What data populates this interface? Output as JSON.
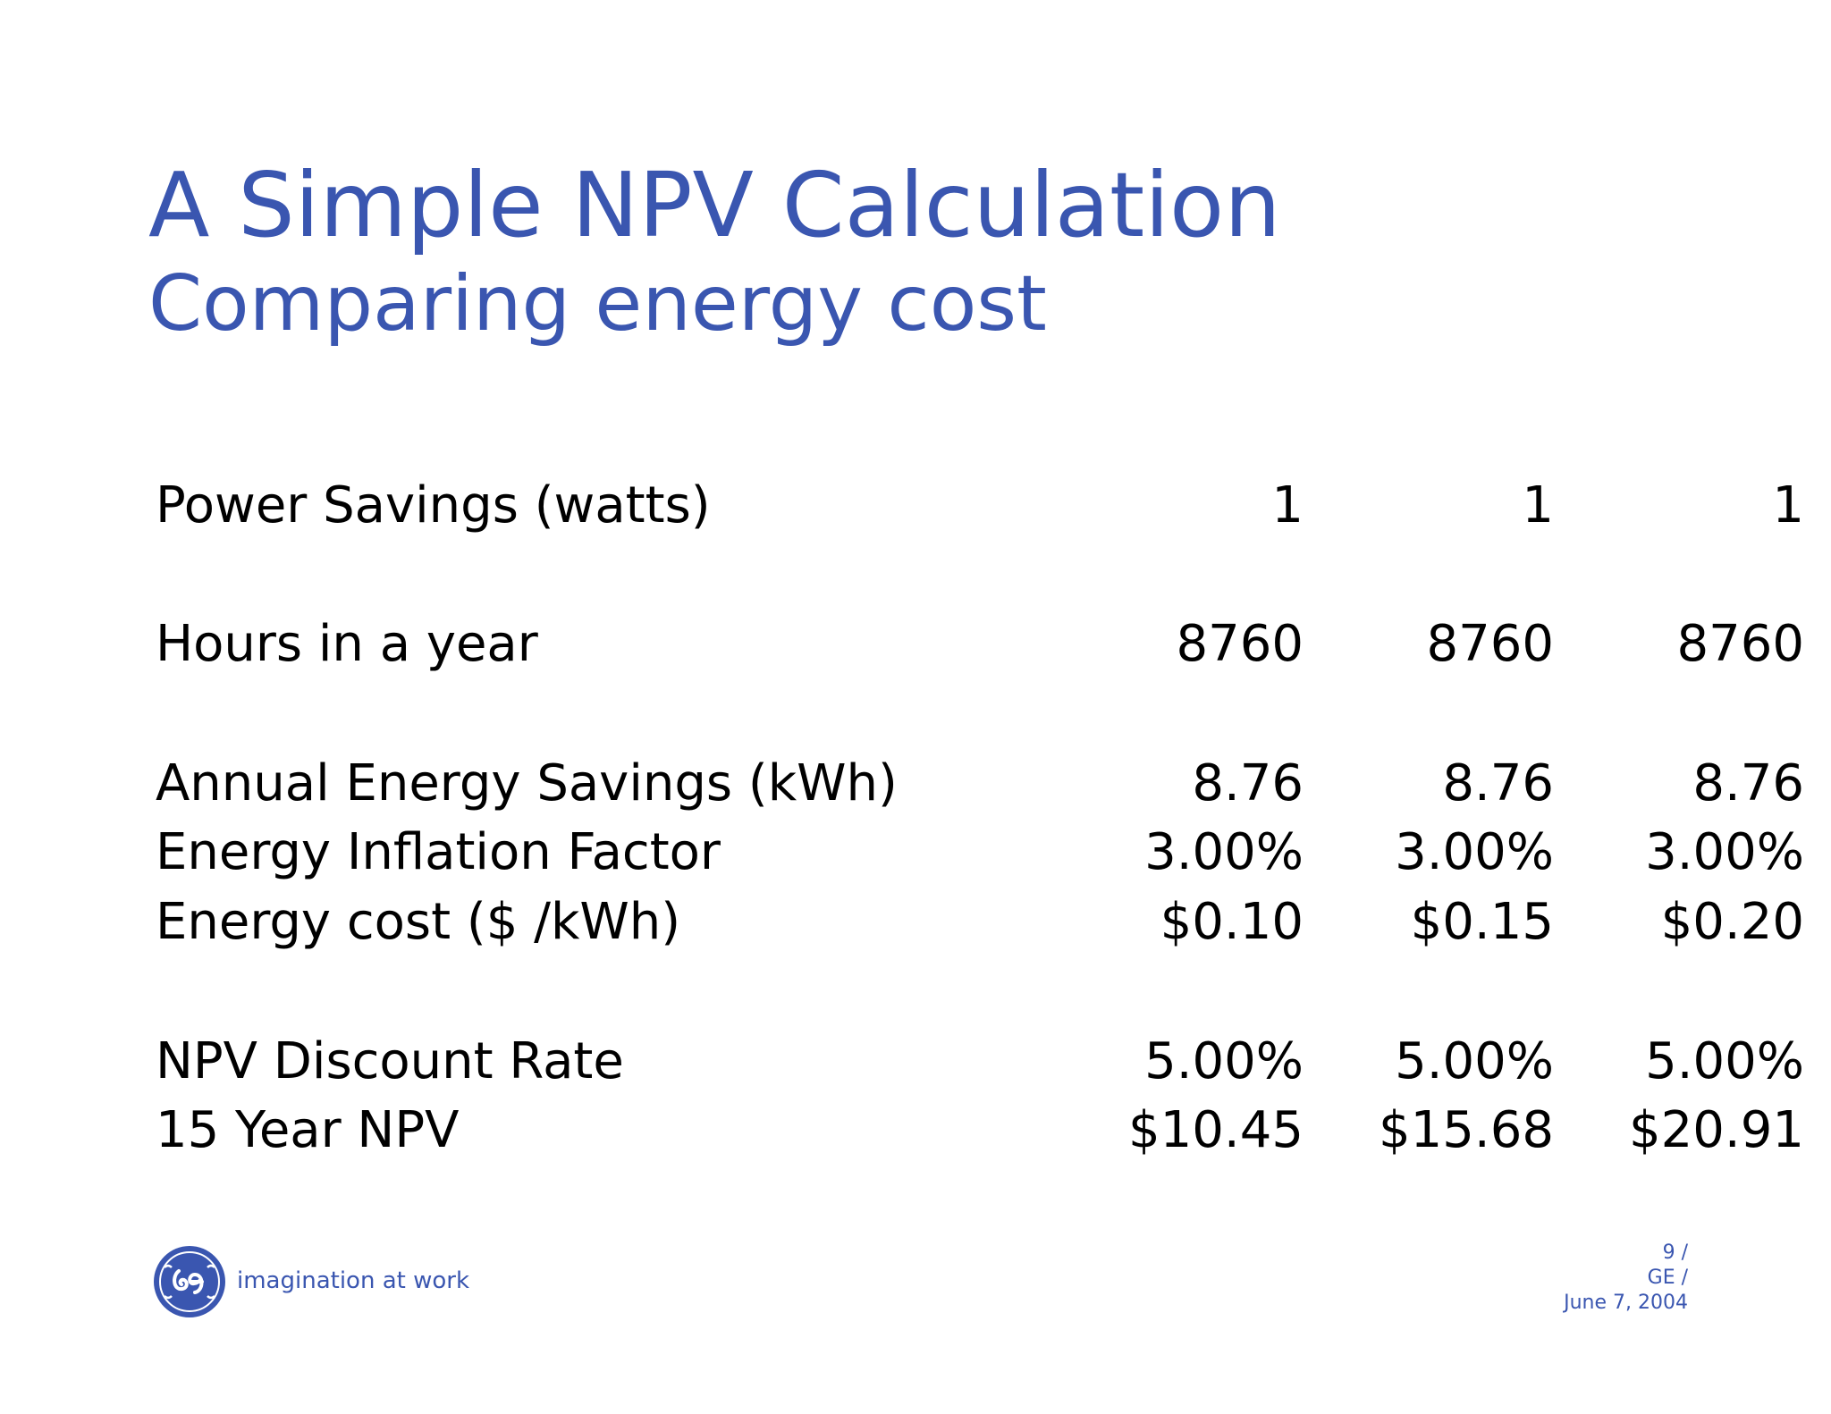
{
  "slide": {
    "title": "A Simple NPV Calculation",
    "subtitle": "Comparing energy cost"
  },
  "table": {
    "rows": [
      {
        "label": "Power Savings (watts)",
        "values": [
          "1",
          "1",
          "1"
        ]
      },
      {
        "label": "Hours in a year",
        "values": [
          "8760",
          "8760",
          "8760"
        ]
      },
      {
        "label": "Annual Energy Savings (kWh)",
        "values": [
          "8.76",
          "8.76",
          "8.76"
        ]
      },
      {
        "label": "Energy Inflation Factor",
        "values": [
          "3.00%",
          "3.00%",
          "3.00%"
        ]
      },
      {
        "label": "Energy cost ($ /kWh)",
        "values": [
          "$0.10",
          "$0.15",
          "$0.20"
        ]
      },
      {
        "label": "NPV Discount Rate",
        "values": [
          "5.00%",
          "5.00%",
          "5.00%"
        ]
      },
      {
        "label": "15 Year NPV",
        "values": [
          "$10.45",
          "$15.68",
          "$20.91"
        ]
      }
    ]
  },
  "footer": {
    "logo_icon": "ge-monogram-icon",
    "tagline": "imagination at work",
    "page_number": "9 /",
    "company": "GE /",
    "date": "June 7, 2004"
  },
  "colors": {
    "accent": "#3a56b0",
    "text": "#000000",
    "background": "#ffffff"
  }
}
